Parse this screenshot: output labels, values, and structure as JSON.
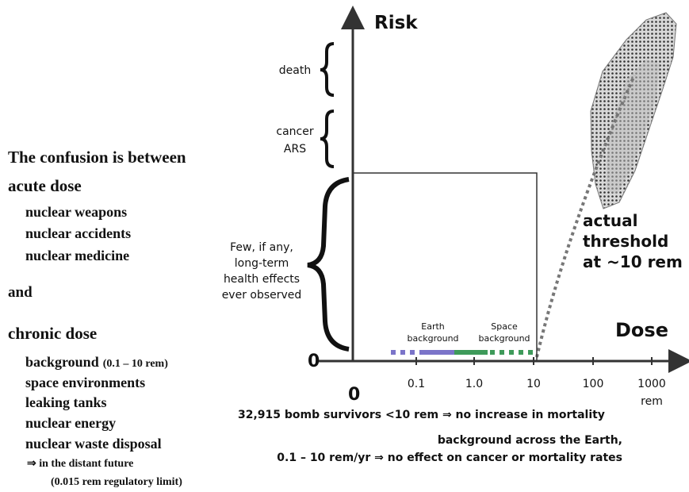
{
  "left_text": {
    "title": "The confusion is between",
    "acute": {
      "heading": "acute dose",
      "items": [
        "nuclear weapons",
        "nuclear accidents",
        "nuclear medicine"
      ]
    },
    "and": "and",
    "chronic": {
      "heading": "chronic dose",
      "background": "background",
      "background_note": "(0.1 – 10 rem)",
      "items": [
        "space environments",
        "leaking tanks",
        "nuclear energy",
        "nuclear waste disposal"
      ],
      "future": "⇒ in the distant future",
      "limit": "(0.015 rem regulatory limit)"
    }
  },
  "graph": {
    "y_axis_label": "Risk",
    "x_axis_label": "Dose",
    "origin_y": "0",
    "origin_x": "0",
    "x_tick_labels": [
      "0.1",
      "1.0",
      "10",
      "100",
      "1000"
    ],
    "unit": "rem",
    "braces": {
      "death": "death",
      "cancer": "cancer",
      "ars": "ARS",
      "few": [
        "Few, if any,",
        "long-term",
        "health effects",
        "ever observed"
      ]
    },
    "earth": [
      "Earth",
      "background"
    ],
    "space": [
      "Space",
      "background"
    ],
    "threshold": [
      "actual",
      "threshold",
      "at ~10 rem"
    ],
    "notes": [
      "32,915 bomb survivors  <10 rem ⇒ no increase in mortality",
      "background across the Earth,",
      "0.1 – 10 rem/yr ⇒ no effect on cancer or mortality rates"
    ]
  }
}
